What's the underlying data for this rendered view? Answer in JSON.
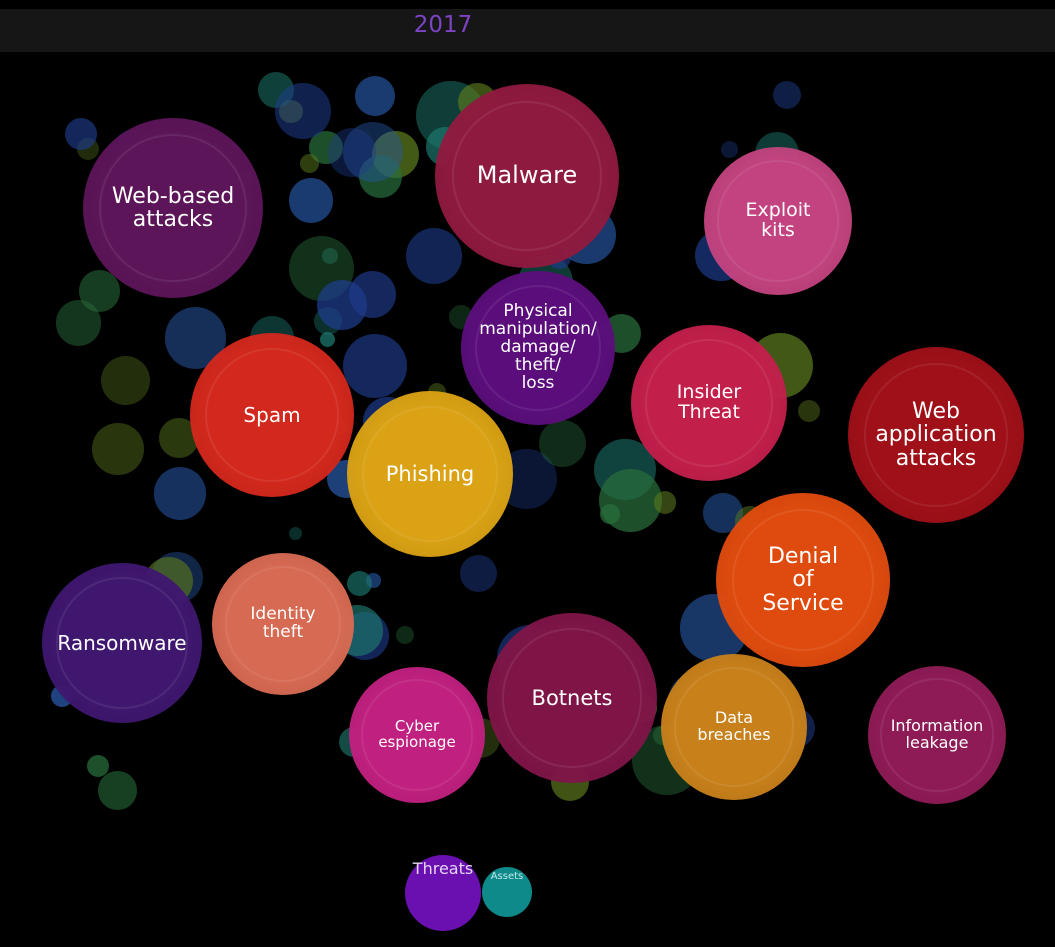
{
  "header": {
    "year": "2017"
  },
  "bubbles": [
    {
      "lines": [
        "Web-based",
        "attacks"
      ]
    },
    {
      "lines": [
        "Malware"
      ]
    },
    {
      "lines": [
        "Exploit",
        "kits"
      ]
    },
    {
      "lines": [
        "Physical",
        "manipulation/",
        "damage/",
        "theft/",
        "loss"
      ]
    },
    {
      "lines": [
        "Spam"
      ]
    },
    {
      "lines": [
        "Insider",
        "Threat"
      ]
    },
    {
      "lines": [
        "Web",
        "application",
        "attacks"
      ]
    },
    {
      "lines": [
        "Phishing"
      ]
    },
    {
      "lines": [
        "Denial",
        "of",
        "Service"
      ]
    },
    {
      "lines": [
        "Ransomware"
      ]
    },
    {
      "lines": [
        "Identity",
        "theft"
      ]
    },
    {
      "lines": [
        "Botnets"
      ]
    },
    {
      "lines": [
        "Cyber",
        "espionage"
      ]
    },
    {
      "lines": [
        "Data",
        "breaches"
      ]
    },
    {
      "lines": [
        "Information",
        "leakage"
      ]
    }
  ],
  "legend": {
    "threats": "Threats",
    "assets": "Assets"
  }
}
